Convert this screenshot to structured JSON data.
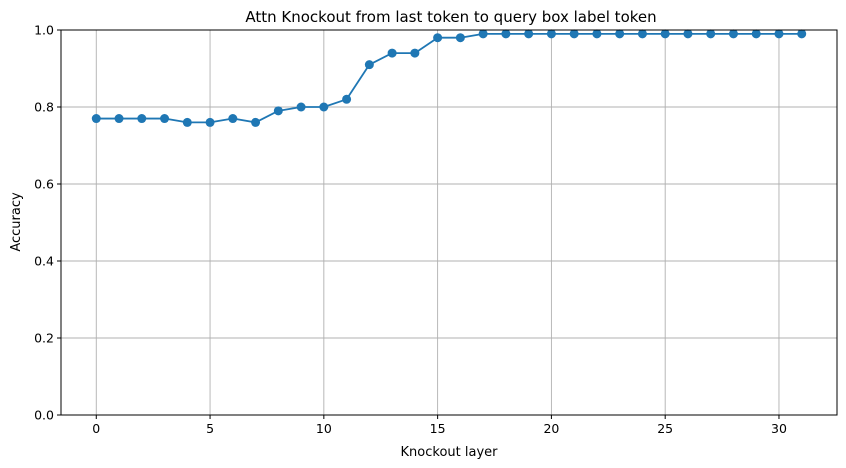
{
  "chart_data": {
    "type": "line",
    "title": "Attn Knockout from last token to query box label token",
    "xlabel": "Knockout layer",
    "ylabel": "Accuracy",
    "xlim": [
      -1.55,
      32.55
    ],
    "ylim": [
      0,
      1
    ],
    "xticks": [
      0,
      5,
      10,
      15,
      20,
      25,
      30
    ],
    "xtick_labels": [
      "0",
      "5",
      "10",
      "15",
      "20",
      "25",
      "30"
    ],
    "yticks": [
      0,
      0.2,
      0.4,
      0.6,
      0.8,
      1.0
    ],
    "ytick_labels": [
      "0.0",
      "0.2",
      "0.4",
      "0.6",
      "0.8",
      "1.0"
    ],
    "grid": true,
    "marker": "circle",
    "line_color": "#1f77b4",
    "x": [
      0,
      1,
      2,
      3,
      4,
      5,
      6,
      7,
      8,
      9,
      10,
      11,
      12,
      13,
      14,
      15,
      16,
      17,
      18,
      19,
      20,
      21,
      22,
      23,
      24,
      25,
      26,
      27,
      28,
      29,
      30,
      31
    ],
    "series": [
      {
        "values": [
          0.77,
          0.77,
          0.77,
          0.77,
          0.76,
          0.76,
          0.77,
          0.76,
          0.79,
          0.8,
          0.8,
          0.82,
          0.91,
          0.94,
          0.94,
          0.98,
          0.98,
          0.99,
          0.99,
          0.99,
          0.99,
          0.99,
          0.99,
          0.99,
          0.99,
          0.99,
          0.99,
          0.99,
          0.99,
          0.99,
          0.99,
          0.99
        ]
      }
    ]
  }
}
